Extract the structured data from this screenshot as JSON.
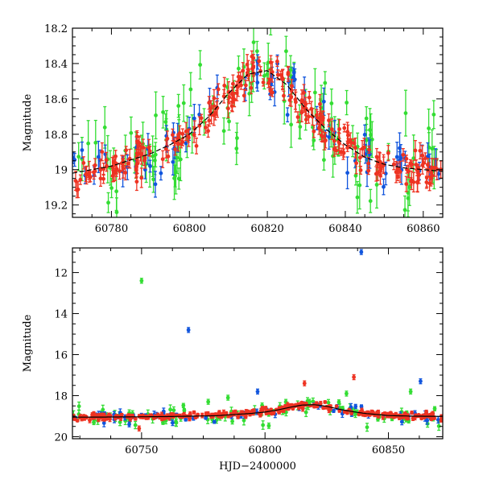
{
  "chart_data": [
    {
      "type": "scatter",
      "title": "",
      "xlabel": "",
      "ylabel": "Magnitude",
      "xlim": [
        60770,
        60865
      ],
      "ylim": [
        19.27,
        18.2
      ],
      "y_inverted": true,
      "xticks": [
        60780,
        60800,
        60820,
        60840,
        60860
      ],
      "xtick_labels": [
        "60780",
        "60800",
        "60820",
        "60840",
        "60860"
      ],
      "yticks": [
        18.2,
        18.4,
        18.6,
        18.8,
        19.0,
        19.2
      ],
      "ytick_labels": [
        "18.2",
        "18.4",
        "18.6",
        "18.8",
        "19",
        "19.2"
      ],
      "grid": false,
      "legend": "none",
      "colors": {
        "green": "#33dd33",
        "blue": "#1155dd",
        "red": "#ee3322",
        "model": "#000000"
      },
      "model_curve": {
        "x": [
          60770,
          60780,
          60790,
          60795,
          60800,
          60805,
          60810,
          60815,
          60820,
          60825,
          60830,
          60835,
          60840,
          60845,
          60850,
          60855,
          60860,
          60865
        ],
        "y": [
          19.02,
          18.98,
          18.91,
          18.86,
          18.8,
          18.7,
          18.57,
          18.46,
          18.44,
          18.52,
          18.66,
          18.77,
          18.86,
          18.93,
          18.97,
          18.99,
          19.0,
          19.01
        ]
      },
      "series": [
        {
          "color_key": "green",
          "scatter": 0.14,
          "err": 0.09,
          "count": 120
        },
        {
          "color_key": "blue",
          "scatter": 0.07,
          "err": 0.06,
          "count": 70
        },
        {
          "color_key": "red",
          "scatter": 0.05,
          "err": 0.04,
          "count": 260
        }
      ]
    },
    {
      "type": "scatter",
      "title": "",
      "xlabel": "HJD−2400000",
      "ylabel": "Magnitude",
      "xlim": [
        60722,
        60872
      ],
      "ylim": [
        20.1,
        10.8
      ],
      "y_inverted": true,
      "xticks": [
        60750,
        60800,
        60850
      ],
      "xtick_labels": [
        "60750",
        "60800",
        "60850"
      ],
      "yticks": [
        12,
        14,
        16,
        18,
        20
      ],
      "ytick_labels": [
        "12",
        "14",
        "16",
        "18",
        "20"
      ],
      "grid": false,
      "legend": "none",
      "colors": {
        "green": "#33dd33",
        "blue": "#1155dd",
        "red": "#ee3322",
        "model": "#000000"
      },
      "model_curve": {
        "x": [
          60722,
          60740,
          60760,
          60780,
          60795,
          60800,
          60805,
          60810,
          60815,
          60820,
          60825,
          60830,
          60835,
          60840,
          60850,
          60860,
          60872
        ],
        "y": [
          19.05,
          19.04,
          19.02,
          18.98,
          18.86,
          18.8,
          18.7,
          18.57,
          18.46,
          18.44,
          18.52,
          18.66,
          18.77,
          18.86,
          18.97,
          19.0,
          19.01
        ]
      },
      "outliers": [
        {
          "x": 60750,
          "y": 12.4,
          "color_key": "green"
        },
        {
          "x": 60769,
          "y": 14.8,
          "color_key": "blue"
        },
        {
          "x": 60839,
          "y": 11.0,
          "color_key": "blue"
        },
        {
          "x": 60836,
          "y": 17.1,
          "color_key": "red"
        },
        {
          "x": 60816,
          "y": 17.4,
          "color_key": "red"
        },
        {
          "x": 60797,
          "y": 17.8,
          "color_key": "blue"
        },
        {
          "x": 60777,
          "y": 18.3,
          "color_key": "green"
        },
        {
          "x": 60785,
          "y": 18.1,
          "color_key": "green"
        },
        {
          "x": 60863,
          "y": 17.3,
          "color_key": "blue"
        },
        {
          "x": 60859,
          "y": 17.8,
          "color_key": "green"
        },
        {
          "x": 60833,
          "y": 17.9,
          "color_key": "green"
        },
        {
          "x": 60818,
          "y": 18.3,
          "color_key": "green"
        },
        {
          "x": 60749,
          "y": 19.6,
          "color_key": "red"
        },
        {
          "x": 60745,
          "y": 19.4,
          "color_key": "blue"
        },
        {
          "x": 60729,
          "y": 19.2,
          "color_key": "red"
        }
      ],
      "series": [
        {
          "color_key": "green",
          "scatter": 0.25,
          "err": 0.15,
          "count": 90
        },
        {
          "color_key": "blue",
          "scatter": 0.15,
          "err": 0.12,
          "count": 60
        },
        {
          "color_key": "red",
          "scatter": 0.08,
          "err": 0.08,
          "count": 300
        }
      ]
    }
  ]
}
